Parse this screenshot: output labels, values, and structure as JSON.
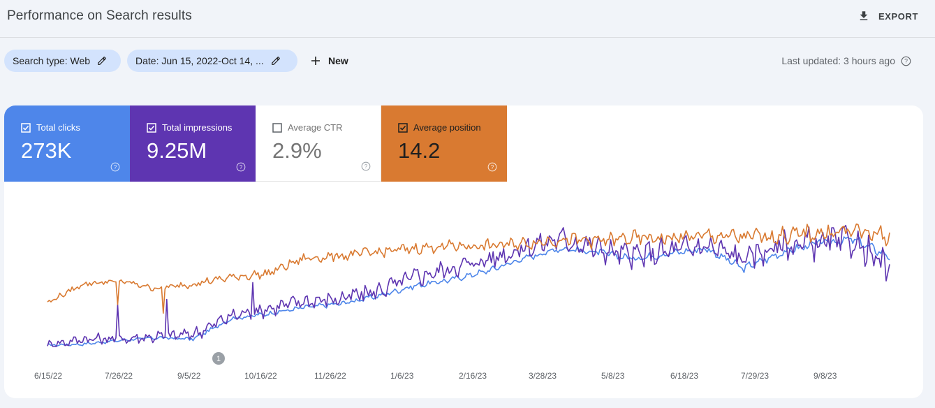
{
  "header": {
    "title": "Performance on Search results",
    "export_label": "EXPORT"
  },
  "filters": {
    "search_type": "Search type: Web",
    "date": "Date: Jun 15, 2022-Oct 14, ...",
    "new_label": "New",
    "last_updated": "Last updated: 3 hours ago"
  },
  "metrics": [
    {
      "label": "Total clicks",
      "value": "273K",
      "checked": true,
      "color": "#4e86ea"
    },
    {
      "label": "Total impressions",
      "value": "9.25M",
      "checked": true,
      "color": "#5e35b1"
    },
    {
      "label": "Average CTR",
      "value": "2.9%",
      "checked": false,
      "color": "#ffffff"
    },
    {
      "label": "Average position",
      "value": "14.2",
      "checked": true,
      "color": "#d97a31"
    }
  ],
  "icons": [
    "download-icon",
    "pencil-icon",
    "plus-icon",
    "help-icon",
    "checkbox-icon"
  ],
  "chart_data": {
    "type": "line",
    "x_tick_labels": [
      "6/15/22",
      "7/26/22",
      "9/5/22",
      "10/16/22",
      "11/26/22",
      "1/6/23",
      "2/16/23",
      "3/28/23",
      "5/8/23",
      "6/18/23",
      "7/29/23",
      "9/8/23"
    ],
    "annotation_label": "1",
    "series": [
      {
        "name": "Total clicks",
        "color": "#4e86ea",
        "values": [
          0.01,
          0.02,
          0.05,
          0.07,
          0.06,
          0.22,
          0.26,
          0.31,
          0.34,
          0.4,
          0.48,
          0.53,
          0.6,
          0.7,
          0.78,
          0.75,
          0.7,
          0.74,
          0.78,
          0.62,
          0.74,
          0.82,
          0.85,
          0.72
        ]
      },
      {
        "name": "Total impressions",
        "color": "#5e35b1",
        "values": [
          0.01,
          0.06,
          0.06,
          0.08,
          0.1,
          0.24,
          0.3,
          0.36,
          0.38,
          0.44,
          0.55,
          0.62,
          0.69,
          0.78,
          0.86,
          0.78,
          0.72,
          0.76,
          0.8,
          0.7,
          0.8,
          0.82,
          0.84,
          0.6
        ]
      },
      {
        "name": "Average position",
        "color": "#d97a31",
        "values": [
          0.35,
          0.5,
          0.52,
          0.46,
          0.5,
          0.55,
          0.58,
          0.7,
          0.72,
          0.75,
          0.78,
          0.8,
          0.8,
          0.82,
          0.85,
          0.84,
          0.86,
          0.86,
          0.88,
          0.87,
          0.88,
          0.9,
          0.92,
          0.88
        ]
      }
    ]
  }
}
